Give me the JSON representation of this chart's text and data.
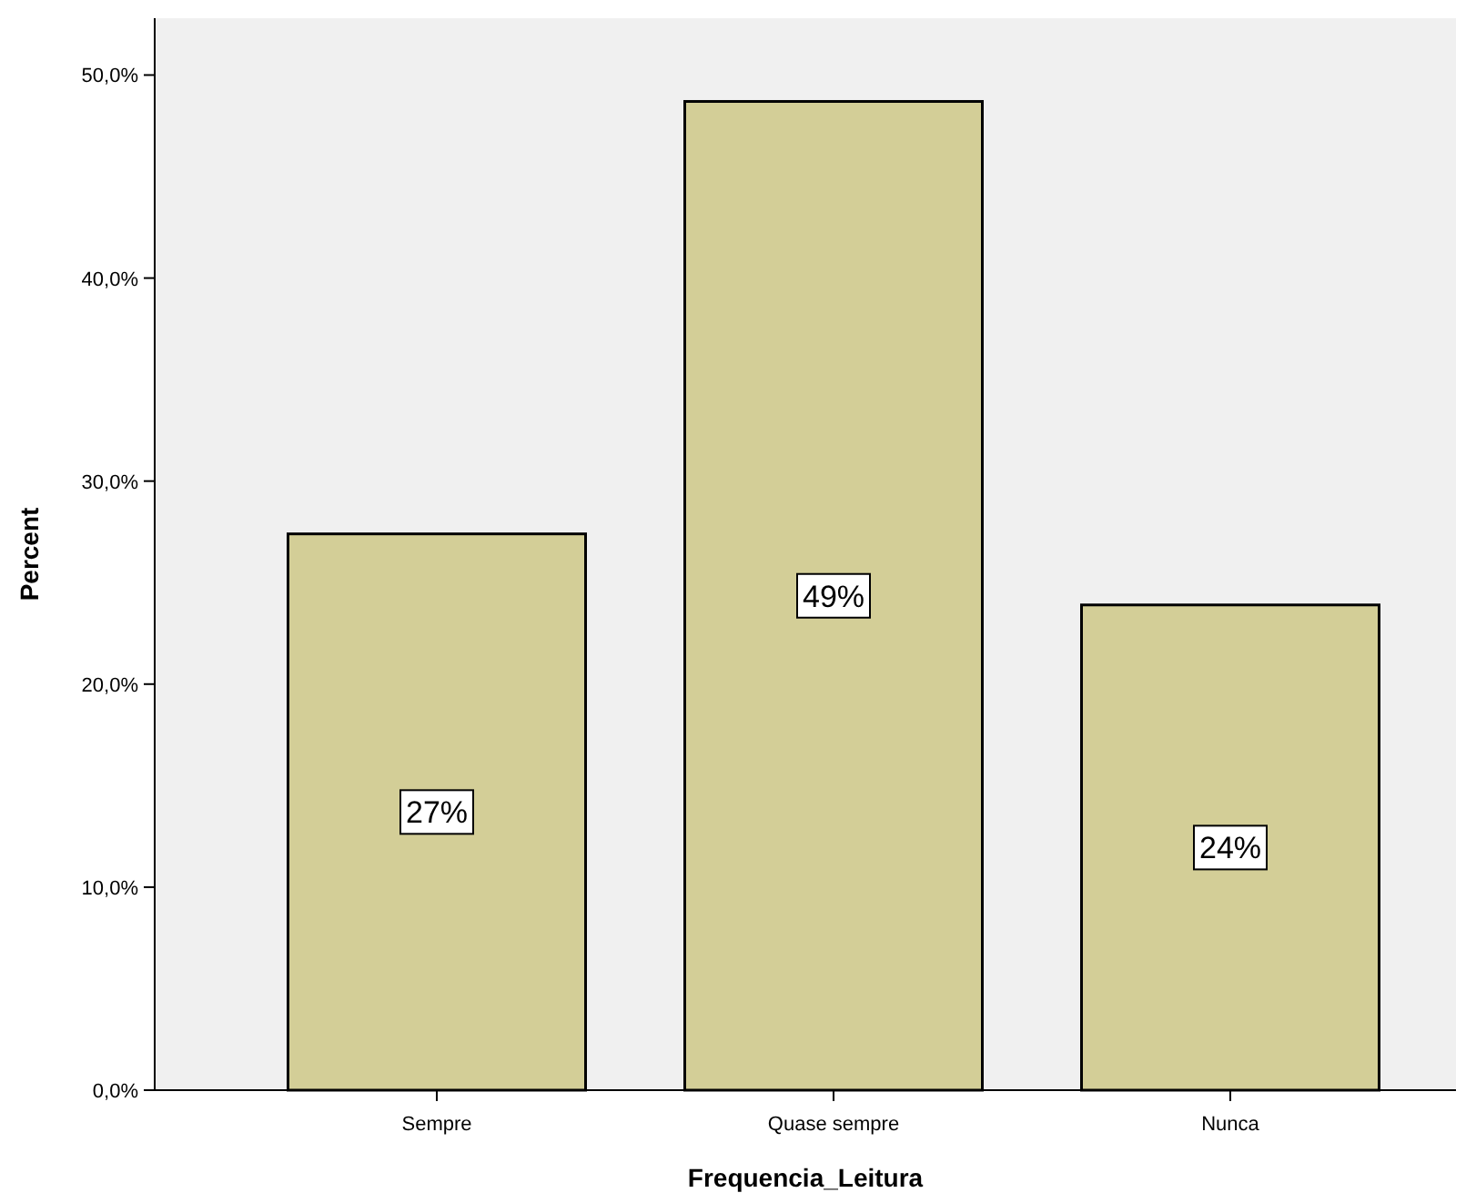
{
  "chart_data": {
    "type": "bar",
    "xlabel": "Frequencia_Leitura",
    "ylabel": "Percent",
    "categories": [
      "Sempre",
      "Quase sempre",
      "Nunca"
    ],
    "values": [
      27.4,
      48.7,
      23.9
    ],
    "color": "#d3ce97",
    "value_labels": [
      "27%",
      "49%",
      "24%"
    ],
    "ylim": [
      0,
      52.8
    ],
    "yticks": [
      {
        "value": 0,
        "label": "0,0%"
      },
      {
        "value": 10,
        "label": "10,0%"
      },
      {
        "value": 20,
        "label": "20,0%"
      },
      {
        "value": 30,
        "label": "30,0%"
      },
      {
        "value": 40,
        "label": "40,0%"
      },
      {
        "value": 50,
        "label": "50,0%"
      }
    ],
    "grid": false
  }
}
